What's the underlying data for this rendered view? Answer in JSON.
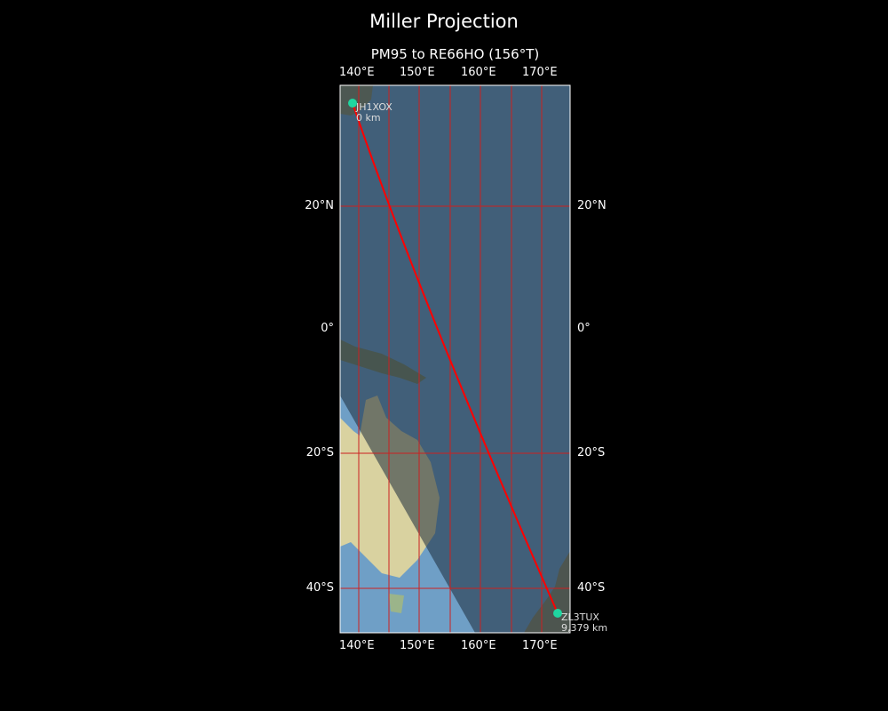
{
  "title": "Miller Projection",
  "subtitle": "PM95 to RE66HO (156°T)",
  "lon_ticks": [
    "140°E",
    "150°E",
    "160°E",
    "170°E"
  ],
  "lat_ticks": [
    "20°N",
    "0°",
    "20°S",
    "40°S"
  ],
  "start": {
    "call": "JH1XOX",
    "distance": "0 km"
  },
  "end": {
    "call": "ZL3TUX",
    "distance": "9,379 km"
  },
  "colors": {
    "path": "#ff0000",
    "station": "#1fd6a0",
    "grid": "#cc2020",
    "ocean": "#3f5a70"
  }
}
